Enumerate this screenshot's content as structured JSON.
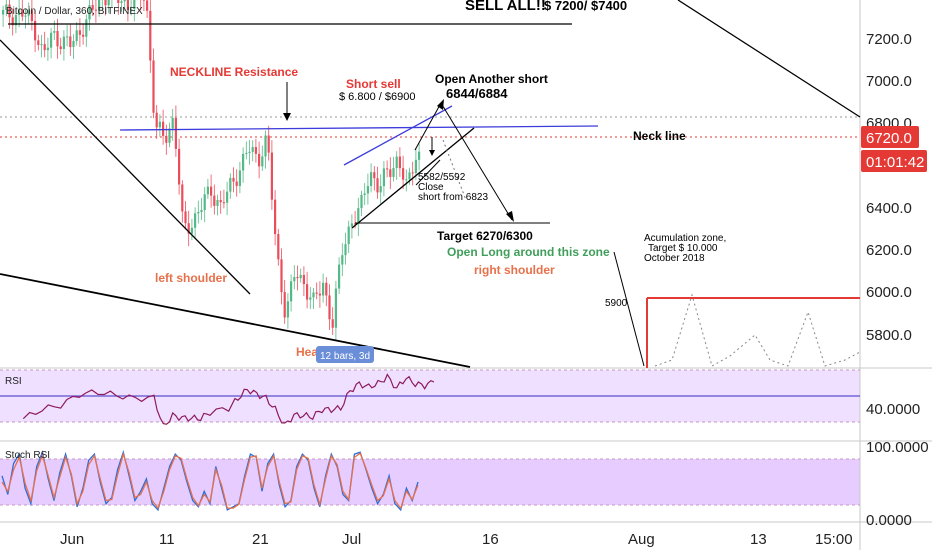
{
  "header": {
    "symbol": "Bitcoin / Dollar, 360, BITFINEX",
    "headline_bold": "SELL ALL!!",
    "headline_rest": "$ 7200/  $7400"
  },
  "badges": {
    "price": "6720.0",
    "timer": "01:01:42",
    "bars": "12 bars, 3d"
  },
  "annotations": {
    "neckline_resistance": "NECKLINE Resistance",
    "short_sell": "Short sell",
    "short_sell_price": "$ 6.800 / $6900",
    "open_another_short": "Open Another short",
    "open_another_short_price": "6844/6884",
    "neck_line": "Neck line",
    "close_1": "5582/5592",
    "close_2": "Close",
    "close_3": "short from 6823",
    "target": "Target 6270/6300",
    "open_long": "Open Long around this zone",
    "right_shoulder": "right shoulder",
    "left_shoulder": "left shoulder",
    "head": "Head",
    "accumulation_1": "Acumulation zone,",
    "accumulation_2": "Target $ 10.000",
    "accumulation_3": "October 2018",
    "level_5900": "5900"
  },
  "colors": {
    "up": "#53b987",
    "down": "#eb4d5c",
    "trendline": "#000000",
    "channel": "#3c3cdc",
    "neckline_red": "#cc0000",
    "annotation_orange": "#e8704a",
    "annotation_green": "#3f9e5a",
    "rsi": "#8e1a5e",
    "stoch_k": "#2a6fdb",
    "stoch_d": "#e8704a",
    "panel_fill": "#efe0ff",
    "badge_red": "#e53935",
    "badge_blue": "#6a8fd8"
  },
  "chart_data": [
    {
      "type": "candlestick",
      "title": "Bitcoin / Dollar, 360, BITFINEX",
      "x_ticks": [
        "Jun",
        "11",
        "21",
        "Jul",
        "16",
        "Aug",
        "13",
        "15:00"
      ],
      "y_ticks": [
        5800.0,
        6000.0,
        6200.0,
        6400.0,
        6600.0,
        6800.0,
        7000.0,
        7200.0
      ],
      "ylim": [
        5640,
        7420
      ],
      "close_path": [
        [
          "2018-05-27",
          7350
        ],
        [
          "2018-05-28",
          7300
        ],
        [
          "2018-05-29",
          7150
        ],
        [
          "2018-05-30",
          7250
        ],
        [
          "2018-06-01",
          7200
        ],
        [
          "2018-06-03",
          7350
        ],
        [
          "2018-06-05",
          7460
        ],
        [
          "2018-06-07",
          7400
        ],
        [
          "2018-06-09",
          7450
        ],
        [
          "2018-06-10",
          6800
        ],
        [
          "2018-06-11",
          6750
        ],
        [
          "2018-06-12",
          6850
        ],
        [
          "2018-06-13",
          6300
        ],
        [
          "2018-06-14",
          6350
        ],
        [
          "2018-06-16",
          6500
        ],
        [
          "2018-06-17",
          6420
        ],
        [
          "2018-06-19",
          6600
        ],
        [
          "2018-06-20",
          6700
        ],
        [
          "2018-06-21",
          6650
        ],
        [
          "2018-06-22",
          6750
        ],
        [
          "2018-06-23",
          6200
        ],
        [
          "2018-06-24",
          5900
        ],
        [
          "2018-06-25",
          6100
        ],
        [
          "2018-06-26",
          6050
        ],
        [
          "2018-06-27",
          5950
        ],
        [
          "2018-06-28",
          6050
        ],
        [
          "2018-06-29",
          5850
        ],
        [
          "2018-06-30",
          6200
        ],
        [
          "2018-07-01",
          6350
        ],
        [
          "2018-07-02",
          6400
        ],
        [
          "2018-07-03",
          6600
        ],
        [
          "2018-07-04",
          6500
        ],
        [
          "2018-07-05",
          6600
        ],
        [
          "2018-07-06",
          6650
        ],
        [
          "2018-07-07",
          6500
        ],
        [
          "2018-07-08",
          6700
        ],
        [
          "2018-07-09",
          6600
        ],
        [
          "2018-07-10",
          6720
        ]
      ],
      "current_price": 6720.0
    },
    {
      "type": "line",
      "title": "RSI",
      "y_ticks": [
        40.0
      ],
      "ylim": [
        28,
        72
      ],
      "series": [
        {
          "color": "#8e1a5e",
          "points": [
            [
              "2018-05-27",
              38
            ],
            [
              "2018-05-29",
              42
            ],
            [
              "2018-05-31",
              50
            ],
            [
              "2018-06-02",
              55
            ],
            [
              "2018-06-04",
              54
            ],
            [
              "2018-06-06",
              57
            ],
            [
              "2018-06-08",
              52
            ],
            [
              "2018-06-10",
              50
            ],
            [
              "2018-06-11",
              35
            ],
            [
              "2018-06-12",
              40
            ],
            [
              "2018-06-13",
              36
            ],
            [
              "2018-06-14",
              41
            ],
            [
              "2018-06-15",
              38
            ],
            [
              "2018-06-16",
              40
            ],
            [
              "2018-06-18",
              48
            ],
            [
              "2018-06-19",
              52
            ],
            [
              "2018-06-20",
              56
            ],
            [
              "2018-06-21",
              58
            ],
            [
              "2018-06-22",
              52
            ],
            [
              "2018-06-23",
              42
            ],
            [
              "2018-06-24",
              36
            ],
            [
              "2018-06-25",
              40
            ],
            [
              "2018-06-26",
              38
            ],
            [
              "2018-06-27",
              42
            ],
            [
              "2018-06-28",
              44
            ],
            [
              "2018-06-29",
              42
            ],
            [
              "2018-06-30",
              48
            ],
            [
              "2018-07-01",
              57
            ],
            [
              "2018-07-02",
              60
            ],
            [
              "2018-07-03",
              63
            ],
            [
              "2018-07-04",
              62
            ],
            [
              "2018-07-05",
              65
            ],
            [
              "2018-07-06",
              62
            ],
            [
              "2018-07-07",
              66
            ],
            [
              "2018-07-08",
              60
            ],
            [
              "2018-07-09",
              64
            ],
            [
              "2018-07-10",
              63
            ]
          ]
        }
      ]
    },
    {
      "type": "line",
      "title": "Stoch RSI",
      "y_ticks": [
        0.0,
        100.0
      ],
      "ylim": [
        -8,
        108
      ],
      "series": [
        {
          "name": "K",
          "color": "#2a6fdb",
          "values": [
            60,
            30,
            80,
            95,
            40,
            15,
            75,
            98,
            55,
            20,
            65,
            95,
            60,
            10,
            40,
            85,
            95,
            50,
            15,
            25,
            70,
            98,
            60,
            20,
            35,
            55,
            15,
            5,
            40,
            75,
            95,
            85,
            50,
            20,
            10,
            35,
            15,
            75,
            40,
            5,
            10,
            15,
            60,
            95,
            90,
            35,
            80,
            95,
            45,
            10,
            20,
            75,
            95,
            85,
            40,
            10,
            60,
            95,
            75,
            30,
            20,
            95,
            98,
            70,
            40,
            15,
            30,
            60,
            15,
            5,
            40,
            20,
            50
          ]
        },
        {
          "name": "D",
          "color": "#e8704a",
          "values": [
            50,
            35,
            70,
            90,
            48,
            20,
            68,
            93,
            60,
            25,
            58,
            90,
            63,
            15,
            35,
            78,
            92,
            55,
            20,
            22,
            62,
            95,
            65,
            25,
            30,
            50,
            20,
            8,
            35,
            70,
            92,
            88,
            55,
            25,
            12,
            30,
            18,
            70,
            45,
            8,
            8,
            14,
            55,
            90,
            92,
            40,
            75,
            92,
            50,
            15,
            18,
            70,
            92,
            88,
            45,
            14,
            55,
            92,
            78,
            35,
            22,
            90,
            96,
            72,
            45,
            20,
            28,
            55,
            20,
            8,
            35,
            22,
            45
          ]
        }
      ]
    }
  ]
}
